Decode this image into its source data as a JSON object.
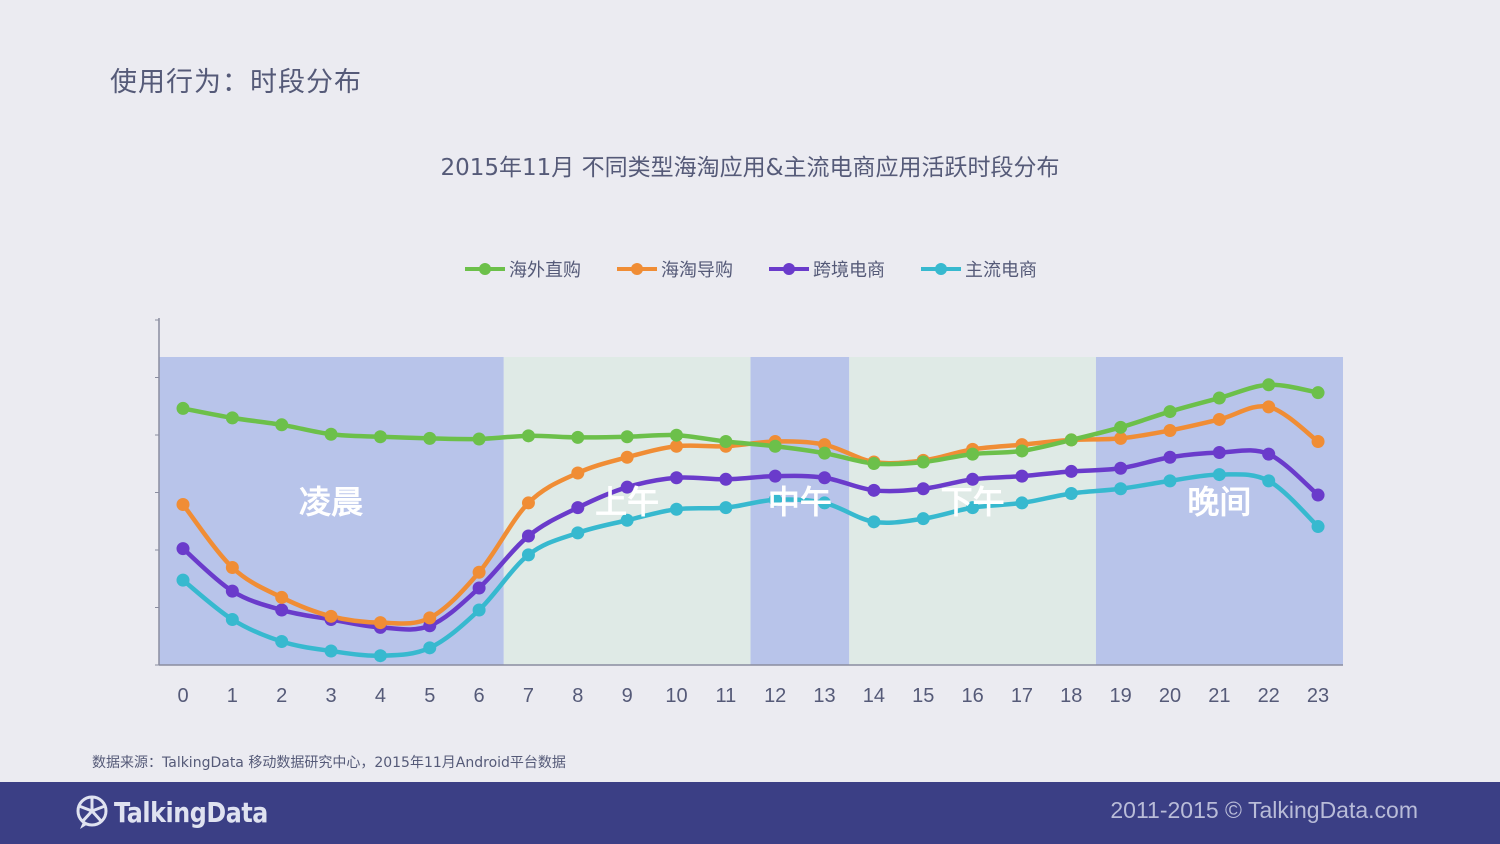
{
  "header": {
    "title": "使用行为：时段分布"
  },
  "chart_data": {
    "type": "line",
    "title": "2015年11月 不同类型海淘应用&主流电商应用活跃时段分布",
    "xlabel": "",
    "ylabel": "",
    "legend_position": "top",
    "y_axis_labels_shown": false,
    "ylim": [
      0,
      100
    ],
    "categories": [
      "0",
      "1",
      "2",
      "3",
      "4",
      "5",
      "6",
      "7",
      "8",
      "9",
      "10",
      "11",
      "12",
      "13",
      "14",
      "15",
      "16",
      "17",
      "18",
      "19",
      "20",
      "21",
      "22",
      "23"
    ],
    "series": [
      {
        "name": "海外直购",
        "color": "#6cc04a",
        "values": [
          80.5,
          77.5,
          75.3,
          72.3,
          71.5,
          71.0,
          70.8,
          71.8,
          71.3,
          71.5,
          72.0,
          70.0,
          68.5,
          66.3,
          63.0,
          63.5,
          66.0,
          67.0,
          70.5,
          74.5,
          79.5,
          83.8,
          88.0,
          85.5
        ]
      },
      {
        "name": "海淘导购",
        "color": "#f08d35",
        "values": [
          50.0,
          30.0,
          20.5,
          14.5,
          12.5,
          14.0,
          28.5,
          50.5,
          60.0,
          65.0,
          68.5,
          68.5,
          70.0,
          69.0,
          63.5,
          64.0,
          67.5,
          69.0,
          70.5,
          71.0,
          73.5,
          77.0,
          81.0,
          70.0
        ]
      },
      {
        "name": "跨境电商",
        "color": "#6a3bcb",
        "values": [
          36.0,
          22.5,
          16.5,
          13.5,
          11.0,
          11.5,
          23.5,
          40.0,
          49.0,
          55.5,
          58.5,
          58.0,
          59.0,
          58.5,
          54.5,
          55.0,
          58.0,
          59.0,
          60.5,
          61.5,
          65.0,
          66.5,
          66.0,
          53.0
        ]
      },
      {
        "name": "主流电商",
        "color": "#37b9cf",
        "values": [
          26.0,
          13.5,
          6.5,
          3.5,
          2.0,
          4.5,
          16.5,
          34.0,
          41.0,
          45.0,
          48.5,
          49.0,
          51.5,
          50.5,
          44.5,
          45.5,
          49.0,
          50.5,
          53.5,
          55.0,
          57.5,
          59.5,
          57.5,
          43.0
        ]
      }
    ],
    "periods": [
      {
        "label": "凌晨",
        "from_hour": 0,
        "to_hour": 6,
        "color": "#b8c4ea"
      },
      {
        "label": "上午",
        "from_hour": 7,
        "to_hour": 11,
        "color": "#dfeae6"
      },
      {
        "label": "中午",
        "from_hour": 12,
        "to_hour": 13,
        "color": "#b8c4ea"
      },
      {
        "label": "下午",
        "from_hour": 14,
        "to_hour": 18,
        "color": "#dfeae6"
      },
      {
        "label": "晚间",
        "from_hour": 19,
        "to_hour": 23,
        "color": "#b8c4ea"
      }
    ]
  },
  "source_note": "数据来源：TalkingData 移动数据研究中心，2015年11月Android平台数据",
  "footer": {
    "brand": "TalkingData",
    "brand_icon": "talkingdata-logo-icon",
    "copyright": "2011-2015 © TalkingData.com",
    "background": "#3b3f85"
  }
}
